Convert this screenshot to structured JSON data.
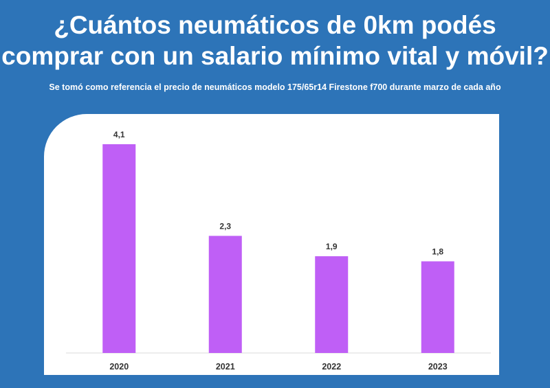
{
  "header": {
    "title": "¿Cuántos neumáticos de 0km podés comprar con un salario mínimo vital y móvil?",
    "subtitle": "Se tomó como referencia el precio de neumáticos modelo 175/65r14 Firestone f700 durante marzo de cada año"
  },
  "colors": {
    "background": "#2d74b8",
    "bar": "#bf5ff6",
    "panel": "#ffffff"
  },
  "chart_data": {
    "type": "bar",
    "title": "¿Cuántos neumáticos de 0km podés comprar con un salario mínimo vital y móvil?",
    "subtitle": "Se tomó como referencia el precio de neumáticos modelo 175/65r14 Firestone f700 durante marzo de cada año",
    "categories": [
      "2020",
      "2021",
      "2022",
      "2023"
    ],
    "values": [
      4.1,
      2.3,
      1.9,
      1.8
    ],
    "value_labels": [
      "4,1",
      "2,3",
      "1,9",
      "1,8"
    ],
    "xlabel": "",
    "ylabel": "",
    "ylim": [
      0,
      4.1
    ],
    "grid": false,
    "legend": "none"
  }
}
